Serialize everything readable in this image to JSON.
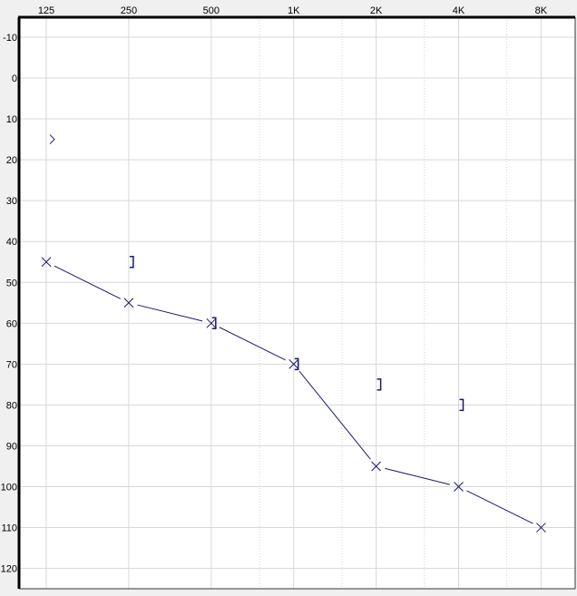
{
  "chart_data": {
    "type": "scatter",
    "title": "",
    "xlabel": "",
    "ylabel": "",
    "x_scale": "log2",
    "y_inverted": true,
    "x_ticks": [
      {
        "label": "125",
        "value": 125
      },
      {
        "label": "250",
        "value": 250
      },
      {
        "label": "500",
        "value": 500
      },
      {
        "label": "1K",
        "value": 1000
      },
      {
        "label": "2K",
        "value": 2000
      },
      {
        "label": "4K",
        "value": 4000
      },
      {
        "label": "8K",
        "value": 8000
      }
    ],
    "x_minor_dotted": [
      750,
      1500,
      3000,
      6000
    ],
    "y_ticks": [
      -10,
      0,
      10,
      20,
      30,
      40,
      50,
      60,
      70,
      80,
      90,
      100,
      110,
      120
    ],
    "ylim": [
      -15,
      125
    ],
    "grid": true,
    "color": "#1a1a6e",
    "series": [
      {
        "marker": "x",
        "connected": true,
        "points": [
          [
            125,
            45
          ],
          [
            250,
            55
          ],
          [
            500,
            60
          ],
          [
            1000,
            70
          ],
          [
            2000,
            95
          ],
          [
            4000,
            100
          ],
          [
            8000,
            110
          ]
        ]
      },
      {
        "marker": "]",
        "connected": false,
        "points": [
          [
            250,
            45
          ],
          [
            500,
            60
          ],
          [
            1000,
            70
          ],
          [
            2000,
            75
          ],
          [
            4000,
            80
          ]
        ]
      },
      {
        "marker": ">",
        "connected": false,
        "points": [
          [
            125,
            15
          ]
        ]
      }
    ]
  }
}
